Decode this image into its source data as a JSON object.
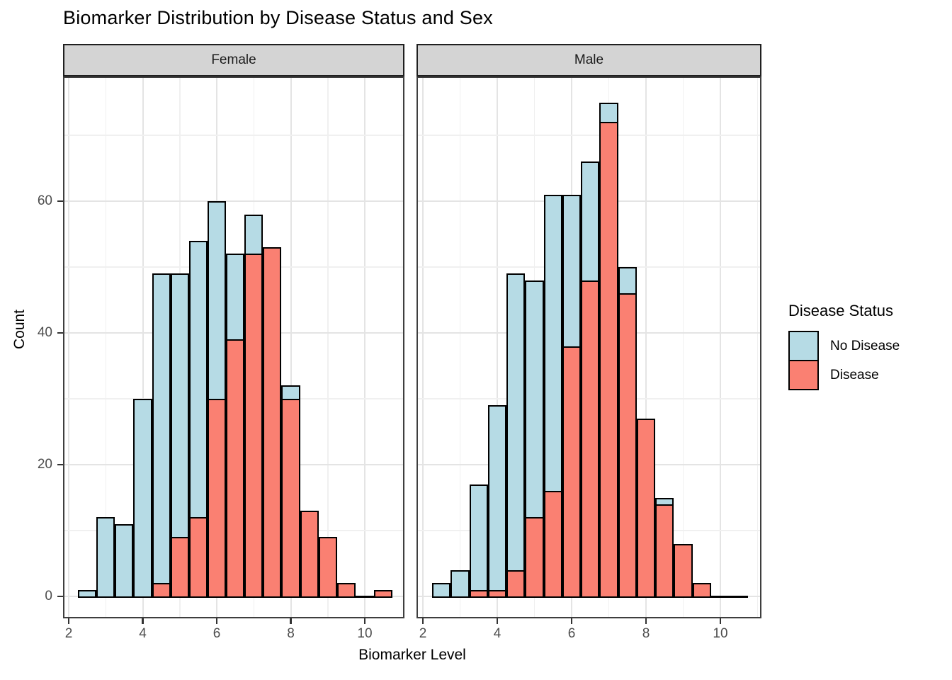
{
  "title": "Biomarker Distribution by Disease Status and Sex",
  "axes": {
    "x_title": "Biomarker Level",
    "y_title": "Count",
    "x_tick_labels": [
      "2",
      "4",
      "6",
      "8",
      "10"
    ],
    "y_tick_labels": [
      "0",
      "20",
      "40",
      "60"
    ]
  },
  "legend": {
    "title": "Disease Status",
    "items": [
      {
        "label": "No Disease",
        "color": "#B6DBE5"
      },
      {
        "label": "Disease",
        "color": "#FA8072"
      }
    ]
  },
  "chart_data": {
    "type": "bar",
    "subtype": "overlaid-histogram",
    "title": "Biomarker Distribution by Disease Status and Sex",
    "xlabel": "Biomarker Level",
    "ylabel": "Count",
    "legend_title": "Disease Status",
    "legend_position": "right",
    "grid": "on",
    "x_ticks": [
      2,
      4,
      6,
      8,
      10
    ],
    "y_ticks": [
      0,
      20,
      40,
      60
    ],
    "x_minor_gridlines": [
      3,
      5,
      7,
      9,
      11
    ],
    "y_minor_gridlines": [
      10,
      30,
      50,
      70
    ],
    "xlim": [
      1.8,
      11.2
    ],
    "ylim": [
      0,
      78
    ],
    "bin_width": 0.5,
    "bin_centers": [
      2.5,
      3.0,
      3.5,
      4.0,
      4.5,
      5.0,
      5.5,
      6.0,
      6.5,
      7.0,
      7.5,
      8.0,
      8.5,
      9.0,
      9.5,
      10.0,
      10.5
    ],
    "series_colors": {
      "No Disease": "#B6DBE5",
      "Disease": "#FA8072"
    },
    "note": "Bars overlap (position identity); Disease drawn over No Disease; null = bar fully hidden behind the other series",
    "facets": [
      {
        "label": "Female",
        "series": [
          {
            "name": "No Disease",
            "color": "#B6DBE5",
            "counts": [
              1,
              12,
              11,
              30,
              49,
              49,
              54,
              60,
              52,
              58,
              null,
              32,
              null,
              null,
              null,
              null,
              null
            ]
          },
          {
            "name": "Disease",
            "color": "#FA8072",
            "counts": [
              0,
              0,
              0,
              0,
              2,
              9,
              12,
              30,
              39,
              52,
              53,
              30,
              13,
              9,
              2,
              0,
              1
            ]
          }
        ]
      },
      {
        "label": "Male",
        "series": [
          {
            "name": "No Disease",
            "color": "#B6DBE5",
            "counts": [
              2,
              4,
              17,
              29,
              49,
              48,
              61,
              61,
              66,
              75,
              50,
              null,
              15,
              null,
              null,
              null,
              null
            ]
          },
          {
            "name": "Disease",
            "color": "#FA8072",
            "counts": [
              0,
              0,
              1,
              1,
              4,
              12,
              16,
              38,
              48,
              72,
              46,
              27,
              14,
              8,
              2,
              0,
              0
            ]
          }
        ]
      }
    ]
  }
}
